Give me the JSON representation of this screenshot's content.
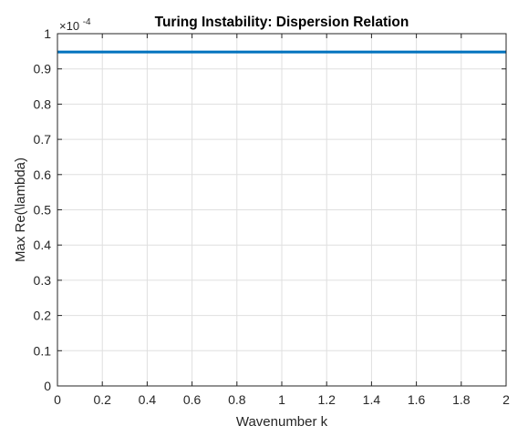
{
  "chart_data": {
    "type": "line",
    "title": "Turing Instability: Dispersion Relation",
    "xlabel": "Wavenumber k",
    "ylabel": "Max Re(\\lambda)",
    "xlim": [
      0,
      2
    ],
    "ylim": [
      0,
      1
    ],
    "x_ticks": [
      0,
      0.2,
      0.4,
      0.6,
      0.8,
      1,
      1.2,
      1.4,
      1.6,
      1.8,
      2
    ],
    "x_tick_labels": [
      "0",
      "0.2",
      "0.4",
      "0.6",
      "0.8",
      "1",
      "1.2",
      "1.4",
      "1.6",
      "1.8",
      "2"
    ],
    "y_ticks": [
      0,
      0.1,
      0.2,
      0.3,
      0.4,
      0.5,
      0.6,
      0.7,
      0.8,
      0.9,
      1
    ],
    "y_tick_labels": [
      "0",
      "0.1",
      "0.2",
      "0.3",
      "0.4",
      "0.5",
      "0.6",
      "0.7",
      "0.8",
      "0.9",
      "1"
    ],
    "y_exponent": {
      "base": "×10",
      "power": "-4"
    },
    "grid": true,
    "series": [
      {
        "x": [
          0,
          2
        ],
        "y": [
          0.948,
          0.948
        ],
        "color": "#0072BD"
      }
    ]
  }
}
